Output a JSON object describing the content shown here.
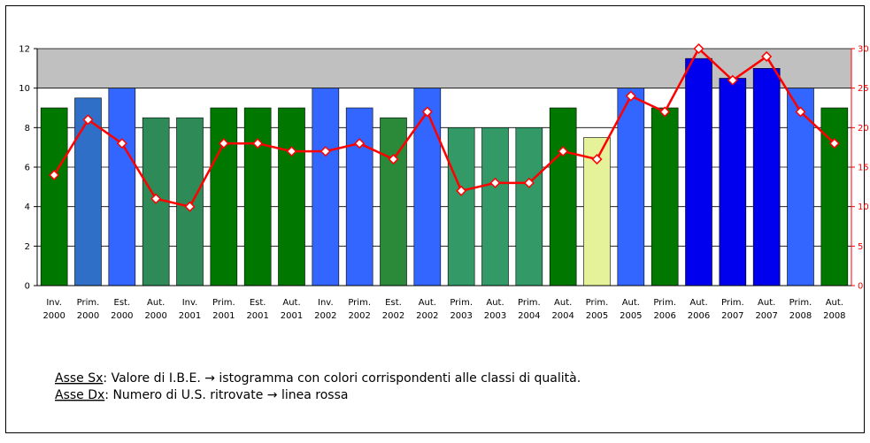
{
  "chart_data": {
    "type": "bar-line",
    "categories": [
      [
        "Inv.",
        "2000"
      ],
      [
        "Prim.",
        "2000"
      ],
      [
        "Est.",
        "2000"
      ],
      [
        "Aut.",
        "2000"
      ],
      [
        "Inv.",
        "2001"
      ],
      [
        "Prim.",
        "2001"
      ],
      [
        "Est.",
        "2001"
      ],
      [
        "Aut.",
        "2001"
      ],
      [
        "Inv.",
        "2002"
      ],
      [
        "Prim.",
        "2002"
      ],
      [
        "Est.",
        "2002"
      ],
      [
        "Aut.",
        "2002"
      ],
      [
        "Prim.",
        "2003"
      ],
      [
        "Aut.",
        "2003"
      ],
      [
        "Prim.",
        "2004"
      ],
      [
        "Aut.",
        "2004"
      ],
      [
        "Prim.",
        "2005"
      ],
      [
        "Aut.",
        "2005"
      ],
      [
        "Prim.",
        "2006"
      ],
      [
        "Aut.",
        "2006"
      ],
      [
        "Prim.",
        "2007"
      ],
      [
        "Aut.",
        "2007"
      ],
      [
        "Prim.",
        "2008"
      ],
      [
        "Aut.",
        "2008"
      ]
    ],
    "series": [
      {
        "type": "bar",
        "colors": [
          "#007800",
          "#2f6fc8",
          "#3366ff",
          "#2e8b57",
          "#2e8b57",
          "#007800",
          "#007800",
          "#007800",
          "#3366ff",
          "#3366ff",
          "#2a8a3a",
          "#3366ff",
          "#339966",
          "#339966",
          "#339966",
          "#007800",
          "#e6f29a",
          "#3366ff",
          "#007800",
          "#0000ee",
          "#0000ee",
          "#0000ee",
          "#3366ff",
          "#007800"
        ],
        "values": [
          9,
          9.5,
          10,
          8.5,
          8.5,
          9,
          9,
          9,
          10,
          9,
          8.5,
          10,
          8,
          8,
          8,
          9,
          7.5,
          10,
          9,
          11.5,
          10.5,
          11,
          10,
          9
        ]
      },
      {
        "type": "line",
        "axis": "y2",
        "color": "#ff0000",
        "values": [
          14,
          21,
          18,
          11,
          10,
          18,
          18,
          17,
          17,
          18,
          16,
          22,
          12,
          13,
          13,
          17,
          16,
          24,
          22,
          30,
          26,
          29,
          22,
          18
        ]
      }
    ],
    "ylim": [
      0,
      12
    ],
    "yticks": [
      0,
      2,
      4,
      6,
      8,
      10,
      12
    ],
    "y2lim": [
      0,
      30
    ],
    "y2ticks": [
      0,
      5,
      10,
      15,
      20,
      25,
      30
    ],
    "grid": true,
    "notes": [
      {
        "term": "Asse Sx",
        "text": ": Valore di I.B.E. → istogramma con colori corrispondenti alle classi di qualità."
      },
      {
        "term": "Asse Dx",
        "text": ": Numero di U.S. ritrovate → linea rossa"
      }
    ]
  }
}
